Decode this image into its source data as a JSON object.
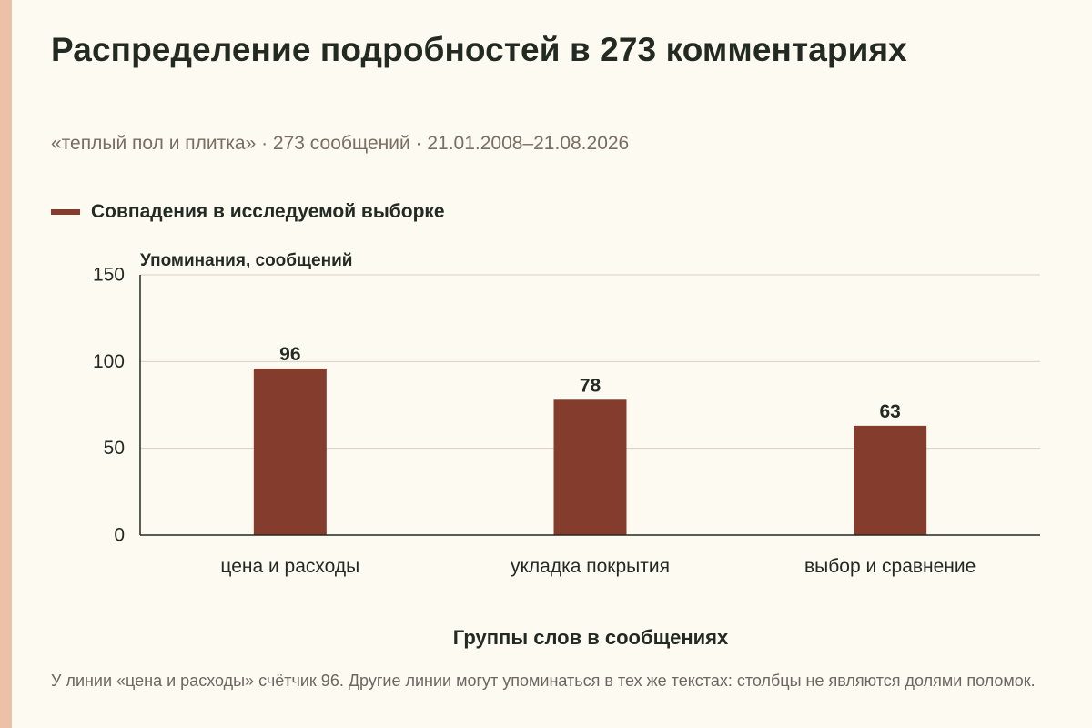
{
  "header": {
    "title": "Распределение подробностей в 273 комментариях",
    "subtitle": "«теплый пол и плитка» · 273 сообщений · 21.01.2008–21.08.2026"
  },
  "legend": {
    "label": "Совпадения в исследуемой выборке"
  },
  "footnote": {
    "text": "У линии «цена и расходы» счётчик 96. Другие линии могут упоминаться в тех же текстах: столбцы не являются долями поломок."
  },
  "chart_data": {
    "type": "bar",
    "categories": [
      "цена и расходы",
      "укладка покрытия",
      "выбор и сравнение"
    ],
    "series": [
      {
        "name": "Совпадения в исследуемой выборке",
        "values": [
          96,
          78,
          63
        ],
        "color": "#843d2d"
      }
    ],
    "xlabel": "Группы слов в сообщениях",
    "ylabel": "Упоминания, сообщений",
    "ylim": [
      0,
      150
    ],
    "yticks": [
      0,
      50,
      100,
      150
    ],
    "grid": true,
    "legend_position": "top-left"
  }
}
